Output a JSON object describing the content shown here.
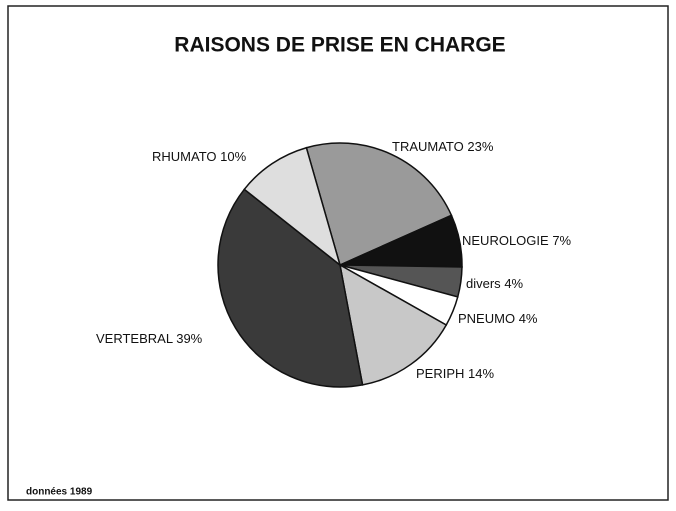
{
  "chart_data": {
    "type": "pie",
    "title": "RAISONS DE PRISE EN CHARGE",
    "categories": [
      "TRAUMATO",
      "NEUROLOGIE",
      "divers",
      "PNEUMO",
      "PERIPH",
      "VERTEBRAL",
      "RHUMATO"
    ],
    "values": [
      23,
      7,
      4,
      4,
      14,
      39,
      10
    ],
    "value_labels": [
      "23%",
      "7%",
      "4%",
      "4%",
      "14%",
      "39%",
      "10%"
    ],
    "colors": [
      "#9a9a9a",
      "#111111",
      "#555555",
      "#ffffff",
      "#c8c8c8",
      "#3a3a3a",
      "#dedede"
    ],
    "footnote": "données 1989"
  }
}
